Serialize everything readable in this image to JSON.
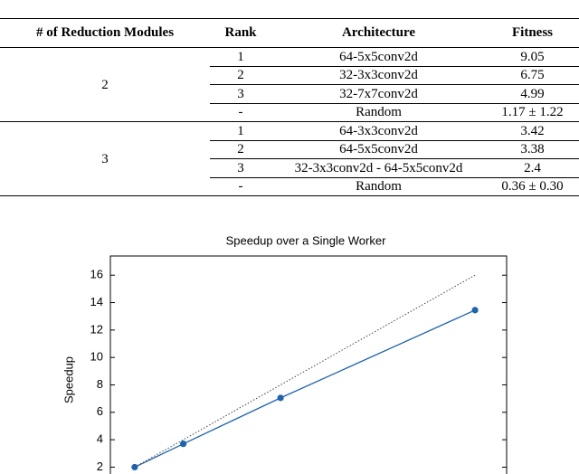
{
  "table": {
    "header": [
      "# of Reduction Modules",
      "Rank",
      "Architecture",
      "Fitness"
    ],
    "groups": [
      {
        "modules": "2",
        "rows": [
          [
            "1",
            "64-5x5conv2d",
            "9.05"
          ],
          [
            "2",
            "32-3x3conv2d",
            "6.75"
          ],
          [
            "3",
            "32-7x7conv2d",
            "4.99"
          ],
          [
            "-",
            "Random",
            "1.17 ± 1.22"
          ]
        ]
      },
      {
        "modules": "3",
        "rows": [
          [
            "1",
            "64-3x3conv2d",
            "3.42"
          ],
          [
            "2",
            "64-5x5conv2d",
            "3.38"
          ],
          [
            "3",
            "32-3x3conv2d - 64-5x5conv2d",
            "2.4"
          ],
          [
            "-",
            "Random",
            "0.36 ± 0.30"
          ]
        ]
      }
    ]
  },
  "chart_data": {
    "type": "line",
    "title": "Speedup over a Single Worker",
    "y_label": "Speedup",
    "series": [
      {
        "color": "#1f63ad",
        "x": [
          2,
          4,
          8,
          16
        ],
        "values": [
          2,
          3.7,
          7.05,
          13.45
        ],
        "markers": true,
        "style": "solid"
      },
      {
        "color": "#444444",
        "x": [
          2,
          16
        ],
        "values": [
          2,
          16
        ],
        "markers": false,
        "style": "dotted"
      }
    ],
    "xlim": [
      1,
      17.3
    ],
    "ylim": [
      1.5,
      17.4
    ],
    "yticks": [
      2,
      4,
      6,
      8,
      10,
      12,
      14,
      16
    ]
  }
}
